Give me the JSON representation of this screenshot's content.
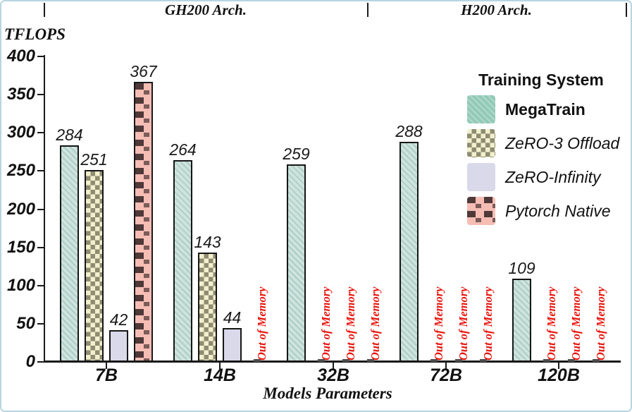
{
  "frame": {
    "border_color": "#b7d4e4"
  },
  "header": {
    "dividers_note": "section-ticks",
    "left_section": "GH200 Arch.",
    "right_section": "H200 Arch."
  },
  "legend": {
    "title": "Training System"
  },
  "chart_data": {
    "type": "bar",
    "title": "",
    "ylabel": "TFLOPS",
    "xlabel": "Models Parameters",
    "ylim": [
      0,
      400
    ],
    "yticks": [
      0,
      50,
      100,
      150,
      200,
      250,
      300,
      350,
      400
    ],
    "grid": false,
    "legend_position": "upper right",
    "categories": [
      "7B",
      "14B",
      "32B",
      "72B",
      "120B"
    ],
    "arch_groups": [
      {
        "label": "GH200 Arch.",
        "categories": [
          "7B",
          "14B",
          "32B"
        ]
      },
      {
        "label": "H200 Arch.",
        "categories": [
          "72B",
          "120B"
        ]
      }
    ],
    "series": [
      {
        "name": "MegaTrain",
        "pattern": "teal-hatch",
        "color": "#92c9b7",
        "label_style": "bold",
        "values": [
          284,
          264,
          259,
          288,
          109
        ]
      },
      {
        "name": "ZeRO-3 Offload",
        "pattern": "checker",
        "color": "#f2efcd",
        "pattern_color": "#8e8c72",
        "label_style": "italic",
        "values": [
          251,
          143,
          null,
          null,
          null
        ]
      },
      {
        "name": "ZeRO-Infinity",
        "pattern": "solid",
        "color": "#d9d9ea",
        "label_style": "italic",
        "values": [
          42,
          44,
          null,
          null,
          null
        ]
      },
      {
        "name": "Pytorch Native",
        "pattern": "brick",
        "color": "#f6bdb5",
        "pattern_color": "#4f3939",
        "label_style": "italic",
        "values": [
          367,
          null,
          null,
          null,
          null
        ]
      }
    ],
    "missing_value_label": "Out of Memory",
    "missing_value_color": "#e8150d",
    "bar_edge_color": "#161616"
  }
}
